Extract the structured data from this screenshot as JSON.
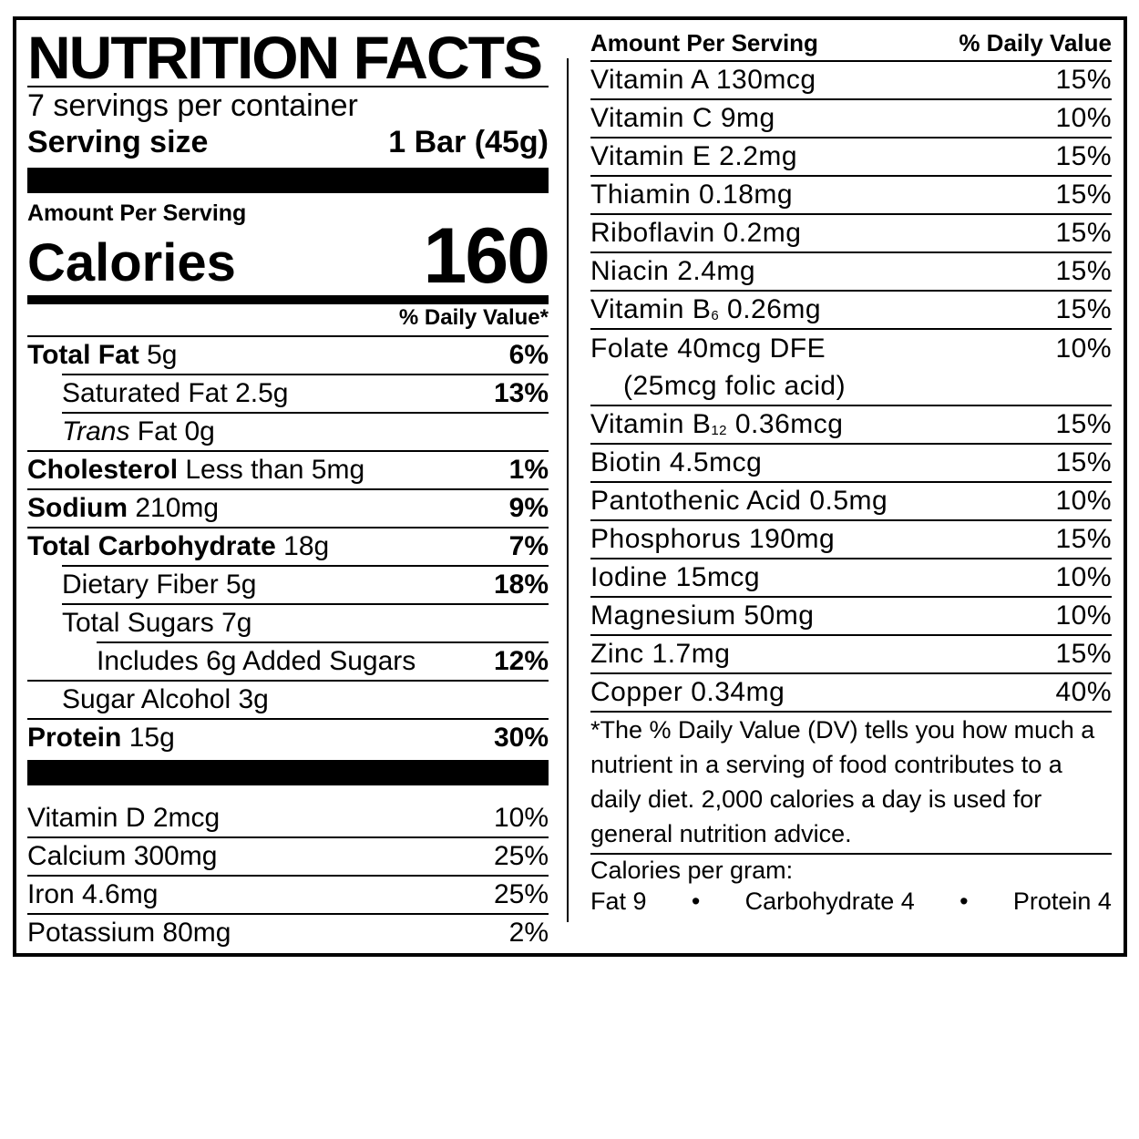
{
  "header": {
    "title": "NUTRITION FACTS",
    "servings": "7 servings per container",
    "serving_size_label": "Serving size",
    "serving_size_value": "1 Bar (45g)"
  },
  "calories": {
    "amount_per_serving": "Amount Per Serving",
    "label": "Calories",
    "value": "160",
    "daily_value_header": "% Daily Value*"
  },
  "nutrients": [
    {
      "name": "Total Fat",
      "amount": " 5g",
      "dv": "6%"
    },
    {
      "name": "Saturated Fat 2.5g",
      "dv": "13%"
    },
    {
      "name_italic": "Trans",
      "name_rest": " Fat 0g",
      "dv": ""
    },
    {
      "name": "Cholesterol",
      "amount": " Less than 5mg",
      "dv": "1%"
    },
    {
      "name": "Sodium",
      "amount": " 210mg",
      "dv": "9%"
    },
    {
      "name": "Total Carbohydrate",
      "amount": " 18g",
      "dv": "7%"
    },
    {
      "name": "Dietary Fiber 5g",
      "dv": "18%"
    },
    {
      "name": "Total Sugars 7g",
      "dv": ""
    },
    {
      "name": "Includes 6g Added Sugars",
      "dv": "12%"
    },
    {
      "name": "Sugar Alcohol 3g",
      "dv": ""
    },
    {
      "name": "Protein",
      "amount": " 15g",
      "dv": "30%"
    }
  ],
  "vitamins_left": [
    {
      "name": "Vitamin D 2mcg",
      "dv": "10%"
    },
    {
      "name": "Calcium 300mg",
      "dv": "25%"
    },
    {
      "name": "Iron 4.6mg",
      "dv": "25%"
    },
    {
      "name": "Potassium 80mg",
      "dv": "2%"
    }
  ],
  "right": {
    "header_left": "Amount Per Serving",
    "header_right": "% Daily Value",
    "rows": [
      {
        "name": "Vitamin A  130mcg",
        "dv": "15%"
      },
      {
        "name": "Vitamin C  9mg",
        "dv": "10%"
      },
      {
        "name": "Vitamin E  2.2mg",
        "dv": "15%"
      },
      {
        "name": "Thiamin  0.18mg",
        "dv": "15%"
      },
      {
        "name": "Riboflavin  0.2mg",
        "dv": "15%"
      },
      {
        "name": "Niacin  2.4mg",
        "dv": "15%"
      },
      {
        "name_pre": "Vitamin B",
        "name_sub": "6",
        "name_post": "  0.26mg",
        "dv": "15%"
      },
      {
        "name": "Folate  40mcg DFE",
        "name_line2": "(25mcg folic acid)",
        "dv": "10%"
      },
      {
        "name_pre": "Vitamin B",
        "name_sub": "12",
        "name_post": "  0.36mcg",
        "dv": "15%"
      },
      {
        "name": "Biotin  4.5mcg",
        "dv": "15%"
      },
      {
        "name": "Pantothenic Acid  0.5mg",
        "dv": "10%"
      },
      {
        "name": "Phosphorus  190mg",
        "dv": "15%"
      },
      {
        "name": "Iodine  15mcg",
        "dv": "10%"
      },
      {
        "name": "Magnesium  50mg",
        "dv": "10%"
      },
      {
        "name": "Zinc  1.7mg",
        "dv": "15%"
      },
      {
        "name": "Copper  0.34mg",
        "dv": "40%"
      }
    ],
    "footnote": "*The % Daily Value (DV) tells you how much a nutrient in a serving of food contributes to a daily diet. 2,000 calories a day is used for general nutrition advice.",
    "calories_per_gram_label": "Calories per gram:",
    "cpg_fat": "Fat 9",
    "cpg_bullet": "•",
    "cpg_carb": "Carbohydrate 4",
    "cpg_protein": "Protein 4"
  }
}
